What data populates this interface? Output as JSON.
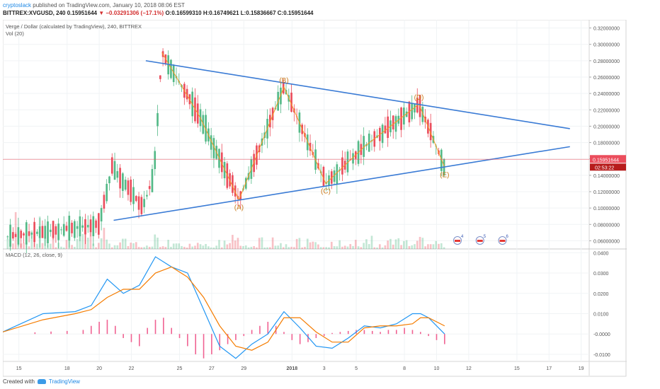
{
  "header": {
    "user": "cryptoslack",
    "published": "published on TradingView.com, January 10, 2018 08:06 EST",
    "symbol_line": "BITTREX:XVGUSD, 240",
    "last": "0.15951644",
    "change_arrow": "▼",
    "change": "−0.03291306 (−17.1%)",
    "ohlc": "O:0.16599310 H:0.16749621 L:0.15836667 C:0.15951644"
  },
  "chart_data": [
    {
      "type": "candlestick",
      "title": "Verge / Dollar (calculated by TradingView), 240, BITTREX",
      "indicator_label": "Vol (20)",
      "price_scale": {
        "ylim": [
          0.05,
          0.33
        ],
        "ticks": [
          "0.32000000",
          "0.30000000",
          "0.28000000",
          "0.26000000",
          "0.24000000",
          "0.22000000",
          "0.20000000",
          "0.18000000",
          "0.16000000",
          "0.14000000",
          "0.12000000",
          "0.10000000",
          "0.08000000",
          "0.06000000"
        ]
      },
      "last_price_label": "0.15951644",
      "countdown_label": "02:53:22",
      "x_ticks": [
        "15",
        "18",
        "20",
        "22",
        "25",
        "27",
        "29",
        "2018",
        "3",
        "5",
        "8",
        "10",
        "12",
        "15",
        "17",
        "19"
      ],
      "wave_labels": [
        "(A)",
        "(B)",
        "(C)",
        "(D)",
        "(E)"
      ],
      "wave_points": [
        {
          "label": "(A)",
          "day": 28.2,
          "price": 0.11
        },
        {
          "label": "(B)",
          "day": 31.0,
          "price": 0.248
        },
        {
          "label": "(C)",
          "day": 33.6,
          "price": 0.13
        },
        {
          "label": "(D)",
          "day": 39.4,
          "price": 0.227
        },
        {
          "label": "(E)",
          "day": 41.0,
          "price": 0.15
        }
      ],
      "zigzag_points": [
        {
          "day": 23.4,
          "price": 0.29
        },
        {
          "day": 25.8,
          "price": 0.21
        },
        {
          "day": 28.2,
          "price": 0.11
        },
        {
          "day": 31.0,
          "price": 0.248
        },
        {
          "day": 33.6,
          "price": 0.13
        },
        {
          "day": 36.0,
          "price": 0.175
        },
        {
          "day": 39.4,
          "price": 0.227
        },
        {
          "day": 41.0,
          "price": 0.15
        }
      ],
      "trendlines": [
        {
          "from": {
            "day": 22.4,
            "price": 0.28
          },
          "to": {
            "day": 48.8,
            "price": 0.197
          }
        },
        {
          "from": {
            "day": 20.4,
            "price": 0.085
          },
          "to": {
            "day": 48.8,
            "price": 0.175
          }
        }
      ],
      "event_badges": [
        "4",
        "5",
        "6"
      ],
      "colors": {
        "up": "#53b987",
        "down": "#eb4d5c",
        "trendline": "#3a7bd5",
        "wave": "#f59a23",
        "price_line": "#eb4d5c"
      }
    },
    {
      "type": "line",
      "title": "MACD (12, 26, close, 9)",
      "ylim": [
        -0.0135,
        0.0415
      ],
      "ticks": [
        "0.0400",
        "0.0300",
        "0.0200",
        "0.0100",
        "-0.0000",
        "-0.0100"
      ],
      "series": [
        {
          "color": "#2196f3",
          "x": [
            13.5,
            16,
            18,
            19,
            20,
            21,
            22,
            23,
            24,
            25,
            26,
            27,
            28,
            29,
            30,
            31,
            32,
            33,
            34,
            35,
            36,
            37,
            38,
            39,
            39.5,
            40,
            41
          ],
          "y": [
            0.001,
            0.01,
            0.011,
            0.014,
            0.027,
            0.02,
            0.024,
            0.038,
            0.033,
            0.03,
            0.012,
            -0.006,
            -0.012,
            -0.005,
            0.0,
            0.011,
            0.003,
            -0.006,
            -0.007,
            -0.002,
            0.004,
            0.003,
            0.005,
            0.01,
            0.01,
            0.008,
            0.0
          ]
        },
        {
          "color": "#f57c00",
          "x": [
            13.5,
            16,
            18,
            19,
            20,
            21,
            22,
            23,
            24,
            25,
            26,
            27,
            28,
            29,
            30,
            31,
            32,
            33,
            34,
            35,
            36,
            37,
            38,
            39,
            39.5,
            40,
            41
          ],
          "y": [
            0.001,
            0.007,
            0.01,
            0.012,
            0.018,
            0.022,
            0.022,
            0.03,
            0.033,
            0.028,
            0.018,
            0.004,
            -0.006,
            -0.008,
            -0.004,
            0.008,
            0.008,
            0.001,
            -0.004,
            -0.004,
            0.003,
            0.004,
            0.004,
            0.005,
            0.008,
            0.008,
            0.004
          ]
        }
      ],
      "histogram": {
        "color": "#f06292",
        "x": [
          15.5,
          16.5,
          17.5,
          18.5,
          19.0,
          19.5,
          20.0,
          20.5,
          21.0,
          21.5,
          22.0,
          22.5,
          23.0,
          23.5,
          24.0,
          24.5,
          25.0,
          25.5,
          26.0,
          26.5,
          27.0,
          27.5,
          28.0,
          28.5,
          29.0,
          29.5,
          30.0,
          30.5,
          31.0,
          31.5,
          32.0,
          32.5,
          33.0,
          33.5,
          34.0,
          34.5,
          35.0,
          35.5,
          36.0,
          36.5,
          37.0,
          37.5,
          38.0,
          38.5,
          39.0,
          39.5,
          40.0,
          40.5,
          41.0
        ],
        "y": [
          0.0008,
          0.0012,
          0.0015,
          0.002,
          0.004,
          0.006,
          0.007,
          0.004,
          -0.002,
          -0.004,
          -0.006,
          0.003,
          0.007,
          0.008,
          0.003,
          -0.002,
          -0.006,
          -0.01,
          -0.012,
          -0.01,
          -0.008,
          -0.005,
          -0.003,
          -0.001,
          0.002,
          0.004,
          0.006,
          0.004,
          0.001,
          -0.003,
          -0.005,
          -0.004,
          -0.002,
          -0.001,
          0.0005,
          0.001,
          0.0015,
          0.002,
          0.002,
          0.0015,
          0.001,
          0.002,
          0.002,
          0.003,
          0.002,
          0.001,
          -0.001,
          -0.003,
          -0.005
        ]
      }
    }
  ],
  "footer": {
    "created_with": "Created with",
    "brand": "TradingView"
  }
}
